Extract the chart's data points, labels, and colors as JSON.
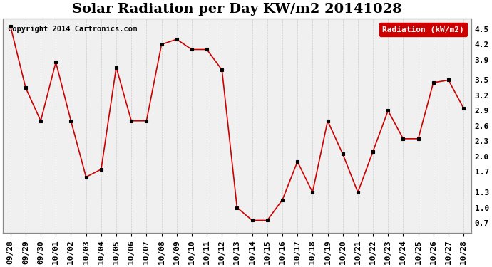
{
  "title": "Solar Radiation per Day KW/m2 20141028",
  "copyright_text": "Copyright 2014 Cartronics.com",
  "legend_label": "Radiation (kW/m2)",
  "dates": [
    "09/28",
    "09/29",
    "09/30",
    "10/01",
    "10/02",
    "10/03",
    "10/04",
    "10/05",
    "10/06",
    "10/07",
    "10/08",
    "10/09",
    "10/10",
    "10/11",
    "10/12",
    "10/13",
    "10/14",
    "10/15",
    "10/16",
    "10/17",
    "10/18",
    "10/19",
    "10/20",
    "10/21",
    "10/22",
    "10/23",
    "10/24",
    "10/25",
    "10/26",
    "10/27",
    "10/28"
  ],
  "values": [
    4.55,
    3.35,
    2.7,
    3.85,
    2.7,
    1.6,
    1.75,
    3.75,
    2.7,
    2.7,
    4.2,
    4.3,
    4.1,
    4.1,
    3.7,
    1.0,
    0.75,
    0.75,
    1.15,
    1.9,
    1.3,
    2.7,
    2.05,
    1.3,
    2.1,
    2.9,
    2.35,
    2.35,
    3.45,
    3.5,
    2.95
  ],
  "ylim": [
    0.5,
    4.7
  ],
  "yticks": [
    0.7,
    1.0,
    1.3,
    1.7,
    2.0,
    2.3,
    2.6,
    2.9,
    3.2,
    3.5,
    3.9,
    4.2,
    4.5
  ],
  "line_color": "#cc0000",
  "marker_color": "#000000",
  "bg_color": "#ffffff",
  "plot_bg_color": "#f0f0f0",
  "grid_color": "#cccccc",
  "legend_bg": "#cc0000",
  "legend_text_color": "#ffffff",
  "title_fontsize": 14,
  "tick_fontsize": 8,
  "copyright_fontsize": 7.5
}
